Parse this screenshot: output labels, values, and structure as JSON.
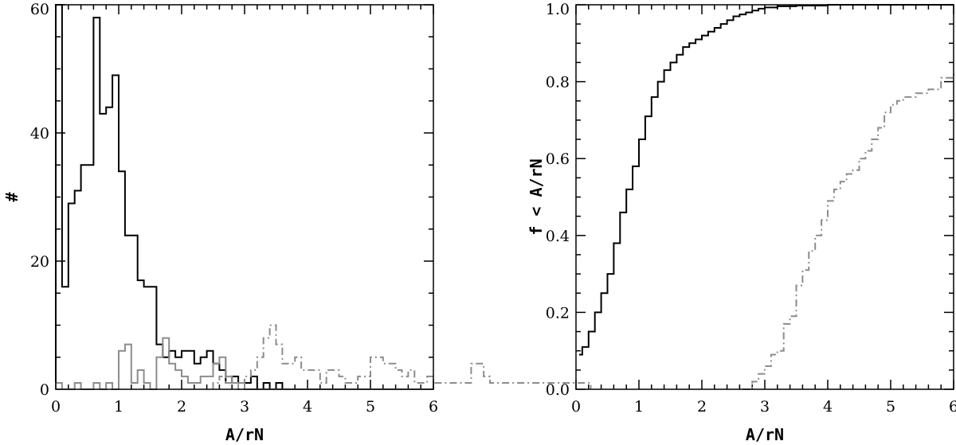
{
  "chart_data": [
    {
      "type": "histogram",
      "xlabel": "A/rN",
      "ylabel": "#",
      "xlim": [
        0,
        6
      ],
      "ylim": [
        0,
        60
      ],
      "xticks": [
        "0",
        "1",
        "2",
        "3",
        "4",
        "5",
        "6"
      ],
      "yticks": [
        "0",
        "20",
        "40",
        "60"
      ],
      "bin_width": 0.1,
      "series": [
        {
          "style": "solid",
          "color": "#000000",
          "bin_start": 0.0,
          "values": [
            60,
            16,
            29,
            31,
            35,
            35,
            58,
            43,
            44,
            49,
            34,
            24,
            24,
            17,
            16,
            16,
            7,
            5,
            6,
            5,
            6,
            6,
            4,
            5,
            6,
            4,
            3,
            1,
            2,
            1,
            1,
            2,
            0,
            1,
            0,
            1,
            0,
            0,
            0,
            0,
            0,
            0,
            0,
            0,
            0,
            0,
            0,
            0,
            0,
            0,
            0,
            0,
            0,
            0,
            0,
            0,
            0,
            0,
            0,
            0
          ]
        },
        {
          "style": "solid",
          "color": "#8c8c8c",
          "bin_start": 0.0,
          "values": [
            1,
            0,
            0,
            1,
            0,
            0,
            1,
            0,
            1,
            0,
            6,
            7,
            1,
            3,
            1,
            0,
            5,
            8,
            4,
            3,
            2,
            1,
            1,
            2,
            2,
            4,
            5,
            2,
            1,
            1,
            0,
            0,
            0,
            0,
            0,
            0,
            0,
            0,
            0,
            0,
            0,
            0,
            0,
            0,
            0,
            0,
            0,
            0,
            0,
            0,
            0,
            0,
            0,
            0,
            0,
            0,
            0,
            0,
            0,
            0
          ]
        },
        {
          "style": "dash-dot",
          "color": "#8c8c8c",
          "bin_start": 2.5,
          "values": [
            1,
            2,
            1,
            1,
            0,
            2,
            3,
            5,
            8,
            10,
            7,
            4,
            4,
            5,
            3,
            3,
            3,
            1,
            3,
            3,
            2,
            1,
            1,
            2,
            2,
            5,
            5,
            4,
            4,
            3,
            2,
            3,
            1,
            1,
            2,
            1,
            1,
            1,
            1,
            1,
            1,
            4,
            4,
            2,
            1,
            1,
            1,
            1,
            1,
            1,
            1,
            1,
            1,
            1,
            1,
            1,
            1,
            1,
            1,
            1
          ]
        }
      ]
    },
    {
      "type": "step-line",
      "xlabel": "A/rN",
      "ylabel": "f < A/rN",
      "xlim": [
        0,
        6
      ],
      "ylim": [
        0.0,
        1.0
      ],
      "xticks": [
        "0",
        "1",
        "2",
        "3",
        "4",
        "5",
        "6"
      ],
      "yticks": [
        "0.0",
        "0.2",
        "0.4",
        "0.6",
        "0.8",
        "1.0"
      ],
      "series": [
        {
          "style": "solid",
          "color": "#000000",
          "x": [
            0.05,
            0.1,
            0.2,
            0.3,
            0.4,
            0.5,
            0.6,
            0.7,
            0.8,
            0.9,
            1.0,
            1.1,
            1.2,
            1.3,
            1.4,
            1.5,
            1.6,
            1.7,
            1.8,
            1.9,
            2.0,
            2.1,
            2.2,
            2.3,
            2.4,
            2.5,
            2.6,
            2.7,
            2.8,
            2.9,
            3.0,
            3.2,
            3.5,
            4.0,
            6.0
          ],
          "y": [
            0.09,
            0.11,
            0.15,
            0.2,
            0.25,
            0.3,
            0.38,
            0.46,
            0.52,
            0.58,
            0.65,
            0.71,
            0.76,
            0.8,
            0.83,
            0.85,
            0.87,
            0.89,
            0.9,
            0.91,
            0.92,
            0.93,
            0.94,
            0.95,
            0.96,
            0.97,
            0.975,
            0.98,
            0.985,
            0.99,
            0.993,
            0.996,
            0.998,
            1.0,
            1.0
          ]
        },
        {
          "style": "dash-dot",
          "color": "#8c8c8c",
          "x": [
            2.65,
            2.8,
            2.9,
            3.0,
            3.1,
            3.2,
            3.3,
            3.4,
            3.5,
            3.6,
            3.7,
            3.8,
            3.9,
            4.0,
            4.1,
            4.2,
            4.3,
            4.4,
            4.5,
            4.6,
            4.7,
            4.8,
            4.9,
            5.0,
            5.1,
            5.2,
            5.4,
            5.6,
            5.8,
            6.0
          ],
          "y": [
            0.0,
            0.02,
            0.04,
            0.06,
            0.09,
            0.1,
            0.17,
            0.19,
            0.27,
            0.31,
            0.36,
            0.4,
            0.44,
            0.49,
            0.52,
            0.54,
            0.56,
            0.57,
            0.6,
            0.62,
            0.65,
            0.68,
            0.72,
            0.74,
            0.75,
            0.76,
            0.77,
            0.78,
            0.81,
            0.82
          ]
        }
      ]
    }
  ]
}
